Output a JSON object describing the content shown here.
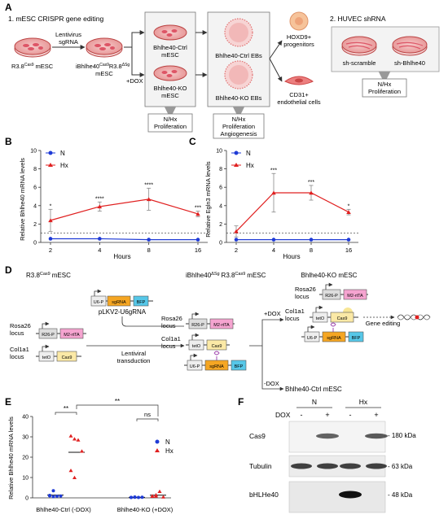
{
  "panelA": {
    "letter": "A",
    "section1": "1. mESC CRISPR gene editing",
    "section2": "2. HUVEC shRNA",
    "dish1": "R3.8",
    "dish1_sup": "Cas9",
    "dish1_suffix": "mESC",
    "arrow1_l1": "Lentivirus",
    "arrow1_l2": "sgRNA",
    "dish2_l1_a": "iBhlhe40",
    "dish2_l1_sup1": "Cas9",
    "dish2_l1_b": "R3.8",
    "dish2_l1_sup2": "ΔSg",
    "dish2_l2": "mESC",
    "dox": "+DOX",
    "ctrl_l1": "Bhlhe40-Ctrl",
    "ctrl_l2": "mESC",
    "ko_l1": "Bhlhe40-KO",
    "ko_l2": "mESC",
    "ctrl_ebs": "Bhlhe40-Ctrl EBs",
    "ko_ebs": "Bhlhe40-KO EBs",
    "hoxd9_l1": "HOXD9+",
    "hoxd9_l2": "progenitors",
    "cd31_l1": "CD31+",
    "cd31_l2": "endothelial cells",
    "out1_l1": "N/Hx",
    "out1_l2": "Proliferation",
    "out2_l1": "N/Hx",
    "out2_l2": "Proliferation",
    "out2_l3": "Angiogenesis",
    "sh1": "sh-scramble",
    "sh2": "sh-Bhlhe40",
    "out3_l1": "N/Hx",
    "out3_l2": "Proliferation"
  },
  "panelB": {
    "letter": "B",
    "ylabel": "Relative Bhlhe40 mRNA levels",
    "xlabel": "Hours",
    "legend": [
      "N",
      "Hx"
    ],
    "yticks": [
      "0",
      "2",
      "4",
      "6",
      "8",
      "10"
    ],
    "xticks": [
      "2",
      "4",
      "8",
      "16"
    ],
    "sig": [
      "*",
      "****",
      "****",
      "***"
    ]
  },
  "panelC": {
    "letter": "C",
    "ylabel": "Relative Egln3 mRNA levels",
    "xlabel": "Hours",
    "legend": [
      "N",
      "Hx"
    ],
    "yticks": [
      "0",
      "2",
      "4",
      "6",
      "8",
      "10"
    ],
    "xticks": [
      "2",
      "4",
      "8",
      "16"
    ],
    "sig": [
      "",
      "***",
      "***",
      "*"
    ]
  },
  "panelD": {
    "letter": "D",
    "title1": "R3.8",
    "title1_sup": "Cas9",
    "title1_suffix": "mESC",
    "title2_a": "iBhlhe40",
    "title2_sup1": "ΔSg",
    "title2_b": "R3.8",
    "title2_sup2": "Cas9",
    "title2_suffix": "mESC",
    "title3": "Bhlhe40-KO mESC",
    "plasmid": "pLKV2-U6gRNA",
    "u6p": "U6-P",
    "sgrna": "sgRNA",
    "bfp": "BFP",
    "r26p": "R26-P",
    "m2rtta": "M2-rtTA",
    "teto": "tetO",
    "cas9": "Cas9",
    "rosa_l1": "Rosa26",
    "rosa_l2": "locus",
    "col_l1": "Col1a1",
    "col_l2": "locus",
    "lenti_l1": "Lentiviral",
    "lenti_l2": "transduction",
    "plus_dox": "+DOX",
    "minus_dox": "-DOX",
    "gene_editing": "Gene editing",
    "ctrl_out": "Bhlhe40-Ctrl mESC"
  },
  "panelE": {
    "letter": "E",
    "ylabel": "Relative Bhlhe40 mRNA levels",
    "legend": [
      "N",
      "Hx"
    ],
    "yticks": [
      "0",
      "10",
      "20",
      "30",
      "40"
    ],
    "cat1": "Bhlhe40-Ctrl (-DOX)",
    "cat2": "Bhlhe40-KO (+DOX)",
    "sig_within1": "**",
    "sig_within2": "ns",
    "sig_between": "**"
  },
  "panelF": {
    "letter": "F",
    "group_n": "N",
    "group_hx": "Hx",
    "dox_label": "DOX",
    "lanes": [
      "-",
      "+",
      "-",
      "+"
    ],
    "rows": [
      "Cas9",
      "Tubulin",
      "bHLHe40"
    ],
    "kda": [
      "- 180 kDa",
      "- 63 kDa",
      "- 48 kDa"
    ]
  },
  "chart_data": [
    {
      "type": "line",
      "title": "",
      "xlabel": "Hours",
      "ylabel": "Relative Bhlhe40 mRNA levels",
      "categories": [
        "2",
        "4",
        "8",
        "16"
      ],
      "ylim": [
        0,
        10
      ],
      "series": [
        {
          "name": "N",
          "values": [
            0.4,
            0.4,
            0.3,
            0.3
          ],
          "color": "#1f3bd6"
        },
        {
          "name": "Hx",
          "values": [
            2.4,
            3.9,
            4.7,
            3.1
          ],
          "err": [
            1.2,
            0.5,
            1.2,
            0.3
          ],
          "color": "#e02020"
        }
      ]
    },
    {
      "type": "line",
      "title": "",
      "xlabel": "Hours",
      "ylabel": "Relative Egln3 mRNA levels",
      "categories": [
        "2",
        "4",
        "8",
        "16"
      ],
      "ylim": [
        0,
        10
      ],
      "series": [
        {
          "name": "N",
          "values": [
            0.3,
            0.3,
            0.3,
            0.3
          ],
          "color": "#1f3bd6"
        },
        {
          "name": "Hx",
          "values": [
            1.2,
            5.4,
            5.4,
            3.3
          ],
          "err": [
            0.6,
            2.1,
            0.8,
            0.3
          ],
          "color": "#e02020"
        }
      ]
    },
    {
      "type": "scatter",
      "title": "",
      "ylabel": "Relative Bhlhe40 mRNA levels",
      "categories": [
        "Bhlhe40-Ctrl (-DOX)",
        "Bhlhe40-KO (+DOX)"
      ],
      "ylim": [
        0,
        40
      ],
      "series": [
        {
          "name": "N",
          "values": [
            [
              1.0,
              0.6,
              0.8,
              0.9,
              1.2,
              3.5
            ],
            [
              0.2,
              0.3,
              0.2,
              0.3,
              0.2,
              0.4
            ]
          ],
          "color": "#1f3bd6"
        },
        {
          "name": "Hx",
          "values": [
            [
              30.5,
              29.0,
              28.5,
              23.0,
              13.5,
              10.0
            ],
            [
              0.8,
              1.5,
              3.2,
              0.5,
              1.0,
              0.9
            ]
          ],
          "color": "#e02020"
        }
      ]
    }
  ]
}
